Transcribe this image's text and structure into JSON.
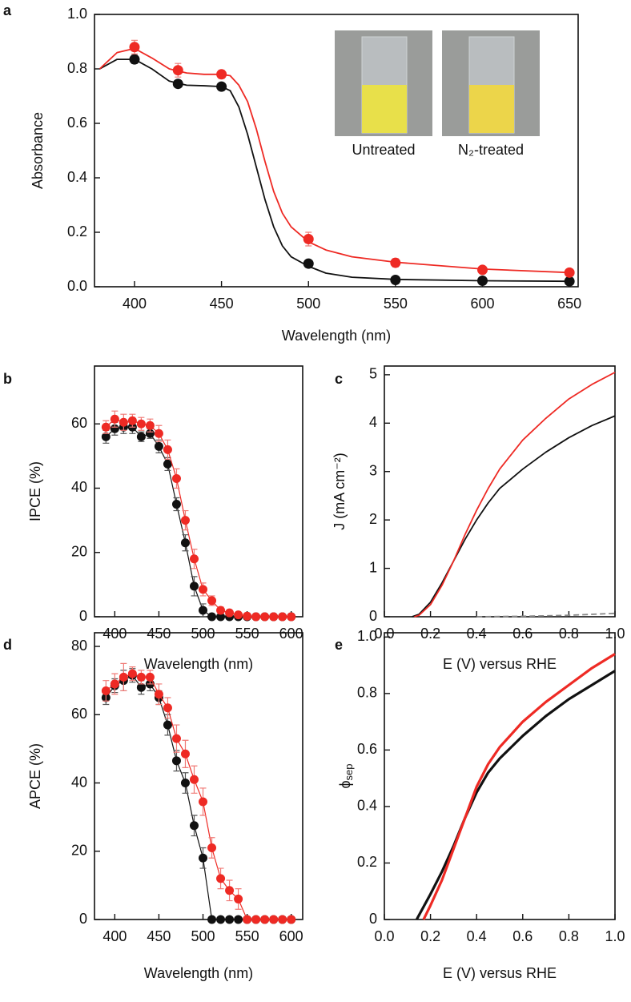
{
  "chart_data": [
    {
      "type": "line",
      "panel": "a",
      "xlabel": "Wavelength (nm)",
      "ylabel": "Absorbance",
      "xlim": [
        377,
        655
      ],
      "ylim": [
        0,
        1.0
      ],
      "xticks": [
        400,
        450,
        500,
        550,
        600,
        650
      ],
      "yticks": [
        {
          "value": 0,
          "label": "0.0"
        },
        0.2,
        0.4,
        0.6,
        0.8,
        {
          "value": 1,
          "label": "1.0"
        }
      ],
      "inset_labels": [
        "Untreated",
        "N₂-treated"
      ],
      "series": [
        {
          "color": "#111111",
          "line": true,
          "markers": false,
          "x": [
            380,
            390,
            400,
            410,
            420,
            430,
            440,
            450,
            455,
            460,
            465,
            470,
            475,
            480,
            485,
            490,
            500,
            510,
            525,
            550,
            600,
            650
          ],
          "values": [
            0.8,
            0.835,
            0.835,
            0.8,
            0.755,
            0.74,
            0.738,
            0.735,
            0.72,
            0.66,
            0.56,
            0.44,
            0.32,
            0.22,
            0.15,
            0.11,
            0.075,
            0.05,
            0.035,
            0.027,
            0.022,
            0.02
          ]
        },
        {
          "color": "#ee2a24",
          "line": true,
          "markers": false,
          "x": [
            380,
            390,
            400,
            410,
            420,
            430,
            440,
            450,
            455,
            460,
            465,
            470,
            475,
            480,
            485,
            490,
            500,
            510,
            525,
            550,
            600,
            650
          ],
          "values": [
            0.8,
            0.86,
            0.875,
            0.84,
            0.8,
            0.785,
            0.78,
            0.78,
            0.775,
            0.74,
            0.68,
            0.58,
            0.46,
            0.35,
            0.27,
            0.22,
            0.165,
            0.135,
            0.11,
            0.09,
            0.065,
            0.052
          ]
        },
        {
          "color": "#111111",
          "line": false,
          "markers": true,
          "x": [
            400,
            425,
            450,
            500,
            550,
            600,
            650
          ],
          "values": [
            0.835,
            0.745,
            0.735,
            0.085,
            0.025,
            0.022,
            0.02
          ],
          "errors": [
            0.015,
            0.012,
            0.01,
            0.012,
            0.008,
            0.006,
            0.006
          ]
        },
        {
          "color": "#ee2a24",
          "line": false,
          "markers": true,
          "x": [
            400,
            425,
            450,
            500,
            550,
            600,
            650
          ],
          "values": [
            0.88,
            0.795,
            0.78,
            0.175,
            0.088,
            0.062,
            0.052
          ],
          "errors": [
            0.025,
            0.025,
            0.015,
            0.025,
            0.015,
            0.01,
            0.01
          ]
        }
      ]
    },
    {
      "type": "line",
      "panel": "b",
      "xlabel": "Wavelength (nm)",
      "ylabel": "IPCE (%)",
      "xlim": [
        377,
        613
      ],
      "ylim": [
        0,
        78
      ],
      "xticks": [
        400,
        450,
        500,
        550,
        600
      ],
      "yticks": [
        0,
        20,
        40,
        60
      ],
      "series": [
        {
          "color": "#111111",
          "line": true,
          "markers": true,
          "x": [
            390,
            400,
            410,
            420,
            430,
            440,
            450,
            460,
            470,
            480,
            490,
            500,
            510,
            520,
            530,
            540,
            550,
            560,
            570,
            580,
            590,
            600
          ],
          "values": [
            56,
            58.5,
            59,
            59,
            56,
            57,
            53,
            47.5,
            35,
            23,
            9.5,
            2,
            0,
            0,
            0,
            0,
            0,
            0,
            0,
            0,
            0,
            0
          ],
          "errors": [
            2,
            2,
            2,
            2,
            1.5,
            1.5,
            2,
            2,
            2,
            2.5,
            3,
            2,
            0,
            0,
            0,
            0,
            0,
            0,
            0,
            0,
            0,
            0
          ]
        },
        {
          "color": "#ee2a24",
          "line": true,
          "markers": true,
          "x": [
            390,
            400,
            410,
            420,
            430,
            440,
            450,
            460,
            470,
            480,
            490,
            500,
            510,
            520,
            530,
            540,
            550,
            560,
            570,
            580,
            590,
            600
          ],
          "values": [
            59,
            61.5,
            60.5,
            61,
            60,
            59.5,
            57,
            52,
            43,
            30,
            18,
            8.5,
            5,
            2,
            1.2,
            0.6,
            0.2,
            0,
            0,
            0,
            0,
            0
          ],
          "errors": [
            2,
            2.5,
            2.5,
            2,
            2,
            2,
            2.5,
            3,
            3,
            3,
            3,
            2,
            1.5,
            1,
            0.5,
            0.5,
            0,
            0,
            0,
            0,
            0,
            0
          ]
        }
      ]
    },
    {
      "type": "line",
      "panel": "c",
      "xlabel": "E (V) versus RHE",
      "ylabel": "J (mA cm⁻²)",
      "xlim": [
        0,
        1.0
      ],
      "ylim": [
        0,
        5.18
      ],
      "xticks": [
        {
          "value": 0,
          "label": "0.0"
        },
        0.2,
        0.4,
        0.6,
        0.8,
        {
          "value": 1,
          "label": "1.0"
        }
      ],
      "yticks": [
        0,
        1,
        2,
        3,
        4,
        5
      ],
      "series": [
        {
          "color": "#111111",
          "line": true,
          "markers": false,
          "x": [
            0.12,
            0.15,
            0.2,
            0.25,
            0.3,
            0.35,
            0.4,
            0.45,
            0.5,
            0.6,
            0.7,
            0.8,
            0.9,
            1.0
          ],
          "values": [
            0,
            0.05,
            0.3,
            0.7,
            1.15,
            1.6,
            2.0,
            2.35,
            2.65,
            3.05,
            3.4,
            3.7,
            3.95,
            4.15
          ]
        },
        {
          "color": "#ee2a24",
          "line": true,
          "markers": false,
          "x": [
            0.13,
            0.15,
            0.2,
            0.25,
            0.3,
            0.35,
            0.4,
            0.45,
            0.5,
            0.6,
            0.7,
            0.8,
            0.9,
            1.0
          ],
          "values": [
            0,
            0.03,
            0.25,
            0.65,
            1.15,
            1.7,
            2.2,
            2.65,
            3.05,
            3.65,
            4.1,
            4.5,
            4.8,
            5.05
          ]
        },
        {
          "color": "#888888",
          "line": true,
          "markers": false,
          "dashed": true,
          "x": [
            0.4,
            0.6,
            0.8,
            1.0
          ],
          "values": [
            0,
            0.01,
            0.03,
            0.07
          ]
        }
      ]
    },
    {
      "type": "line",
      "panel": "d",
      "xlabel": "Wavelength (nm)",
      "ylabel": "APCE (%)",
      "xlim": [
        377,
        613
      ],
      "ylim": [
        0,
        84
      ],
      "xticks": [
        400,
        450,
        500,
        550,
        600
      ],
      "yticks": [
        0,
        20,
        40,
        60,
        80
      ],
      "series": [
        {
          "color": "#111111",
          "line": true,
          "markers": true,
          "x": [
            390,
            400,
            410,
            420,
            430,
            440,
            450,
            460,
            470,
            480,
            490,
            500,
            510,
            520,
            530,
            540,
            550,
            560,
            570,
            580,
            590,
            600
          ],
          "values": [
            65,
            68.5,
            70,
            71.5,
            68,
            69,
            65,
            57,
            46.5,
            40,
            27.5,
            18,
            0,
            0,
            0,
            0,
            0,
            0,
            0,
            0,
            0,
            0
          ],
          "errors": [
            2,
            2,
            3,
            2,
            2,
            2,
            2,
            3,
            3,
            3,
            3,
            3,
            0,
            0,
            0,
            0,
            0,
            0,
            0,
            0,
            0,
            0
          ]
        },
        {
          "color": "#ee2a24",
          "line": true,
          "markers": true,
          "x": [
            390,
            400,
            410,
            420,
            430,
            440,
            450,
            460,
            470,
            480,
            490,
            500,
            510,
            520,
            530,
            540,
            550,
            560,
            570,
            580,
            590,
            600
          ],
          "values": [
            67,
            69,
            71,
            72,
            71,
            71,
            66,
            62,
            53,
            48.5,
            41,
            34.5,
            21,
            12,
            8.5,
            6,
            0,
            0,
            0,
            0,
            0,
            0
          ],
          "errors": [
            3,
            3,
            4,
            2,
            2,
            2,
            3,
            3,
            4,
            4,
            4,
            4,
            3,
            3,
            3,
            3,
            0,
            0,
            0,
            0,
            0,
            0
          ]
        }
      ]
    },
    {
      "type": "line",
      "panel": "e",
      "xlabel": "E (V) versus RHE",
      "ylabel": "ϕ",
      "ylabel_sub": "sep",
      "xlim": [
        0,
        1.0
      ],
      "ylim": [
        0,
        1.015
      ],
      "xticks": [
        {
          "value": 0,
          "label": "0.0"
        },
        0.2,
        0.4,
        0.6,
        0.8,
        {
          "value": 1,
          "label": "1.0"
        }
      ],
      "yticks": [
        0,
        0.2,
        0.4,
        0.6,
        0.8,
        {
          "value": 1,
          "label": "1.0"
        }
      ],
      "series": [
        {
          "color": "#111111",
          "line": true,
          "markers": false,
          "x": [
            0.14,
            0.2,
            0.25,
            0.3,
            0.35,
            0.4,
            0.45,
            0.5,
            0.6,
            0.7,
            0.8,
            0.9,
            1.0
          ],
          "values": [
            0,
            0.09,
            0.17,
            0.26,
            0.36,
            0.45,
            0.52,
            0.57,
            0.65,
            0.72,
            0.78,
            0.83,
            0.88
          ]
        },
        {
          "color": "#ee2a24",
          "line": true,
          "markers": false,
          "x": [
            0.17,
            0.2,
            0.25,
            0.3,
            0.35,
            0.4,
            0.45,
            0.5,
            0.6,
            0.7,
            0.8,
            0.9,
            1.0
          ],
          "values": [
            0,
            0.05,
            0.14,
            0.25,
            0.36,
            0.47,
            0.55,
            0.61,
            0.7,
            0.77,
            0.83,
            0.89,
            0.94
          ]
        }
      ]
    }
  ]
}
